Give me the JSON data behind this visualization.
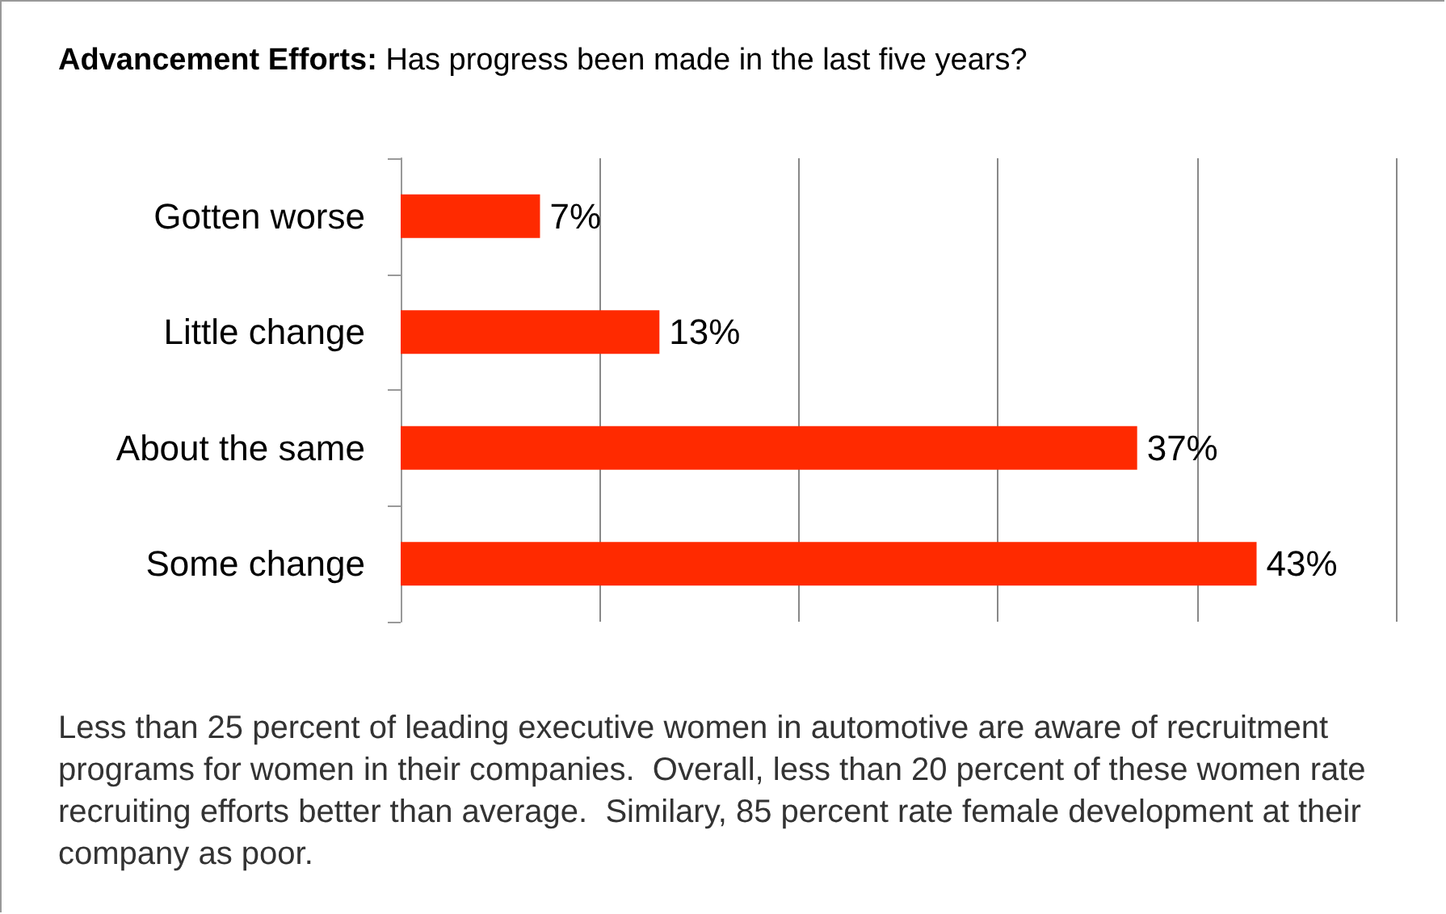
{
  "chart_data": {
    "type": "bar",
    "orientation": "horizontal",
    "title": "Advancement Efforts:",
    "subtitle": "Has progress been made in the last five years?",
    "categories": [
      "Gotten worse",
      "Little change",
      "About the same",
      "Some change"
    ],
    "values": [
      7,
      13,
      37,
      43
    ],
    "value_labels": [
      "7%",
      "13%",
      "37%",
      "43%"
    ],
    "color": "#ff2a00",
    "xlim": [
      0,
      50
    ],
    "xticks": [
      {
        "value": 0,
        "label": null
      },
      {
        "value": 10,
        "label": null
      },
      {
        "value": 20,
        "label": null
      },
      {
        "value": 30,
        "label": null
      },
      {
        "value": 40,
        "label": null
      },
      {
        "value": 50,
        "label": null
      }
    ],
    "tick_labels": "y",
    "grid": "x",
    "annotations": [
      "Less than 25 percent of leading executive women in automotive are aware of recruitment programs for women in their companies.  Overall, less than 20 percent of these women rate recruiting efforts better than average.  Similary, 85 percent rate female development at their company as poor."
    ]
  }
}
